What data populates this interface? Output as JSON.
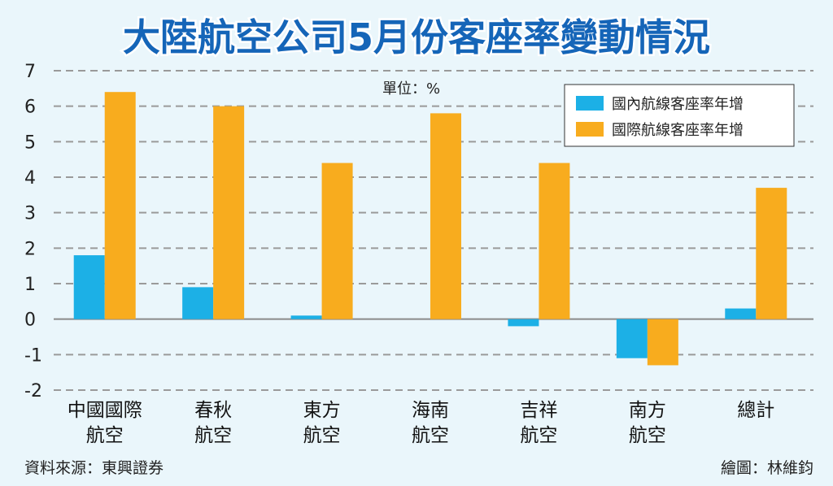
{
  "colors": {
    "background": "#eaf6fb",
    "title": "#1565b8",
    "domestic": "#1cb0e6",
    "international": "#f8ac1e",
    "grid": "#9a9a9a"
  },
  "unit_label": "單位：%",
  "source_label": "資料來源：東興證券",
  "credit_label": "繪圖：林維鈞",
  "chart_data": {
    "type": "bar",
    "title": "大陸航空公司5月份客座率變動情況",
    "categories": [
      [
        "中國國際",
        "航空"
      ],
      [
        "春秋",
        "航空"
      ],
      [
        "東方",
        "航空"
      ],
      [
        "海南",
        "航空"
      ],
      [
        "吉祥",
        "航空"
      ],
      [
        "南方",
        "航空"
      ],
      [
        "總計"
      ]
    ],
    "series": [
      {
        "name": "國內航線客座率年增",
        "color": "#1cb0e6",
        "values": [
          1.8,
          0.9,
          0.1,
          0.0,
          -0.2,
          -1.1,
          0.3
        ]
      },
      {
        "name": "國際航線客座率年增",
        "color": "#f8ac1e",
        "values": [
          6.4,
          6.0,
          4.4,
          5.8,
          4.4,
          -1.3,
          3.7
        ]
      }
    ],
    "ylim": [
      -2,
      7
    ],
    "yticks": [
      7,
      6,
      5,
      4,
      3,
      2,
      1,
      0,
      -1,
      -2
    ],
    "grid": true,
    "legend_position": "top-right"
  }
}
